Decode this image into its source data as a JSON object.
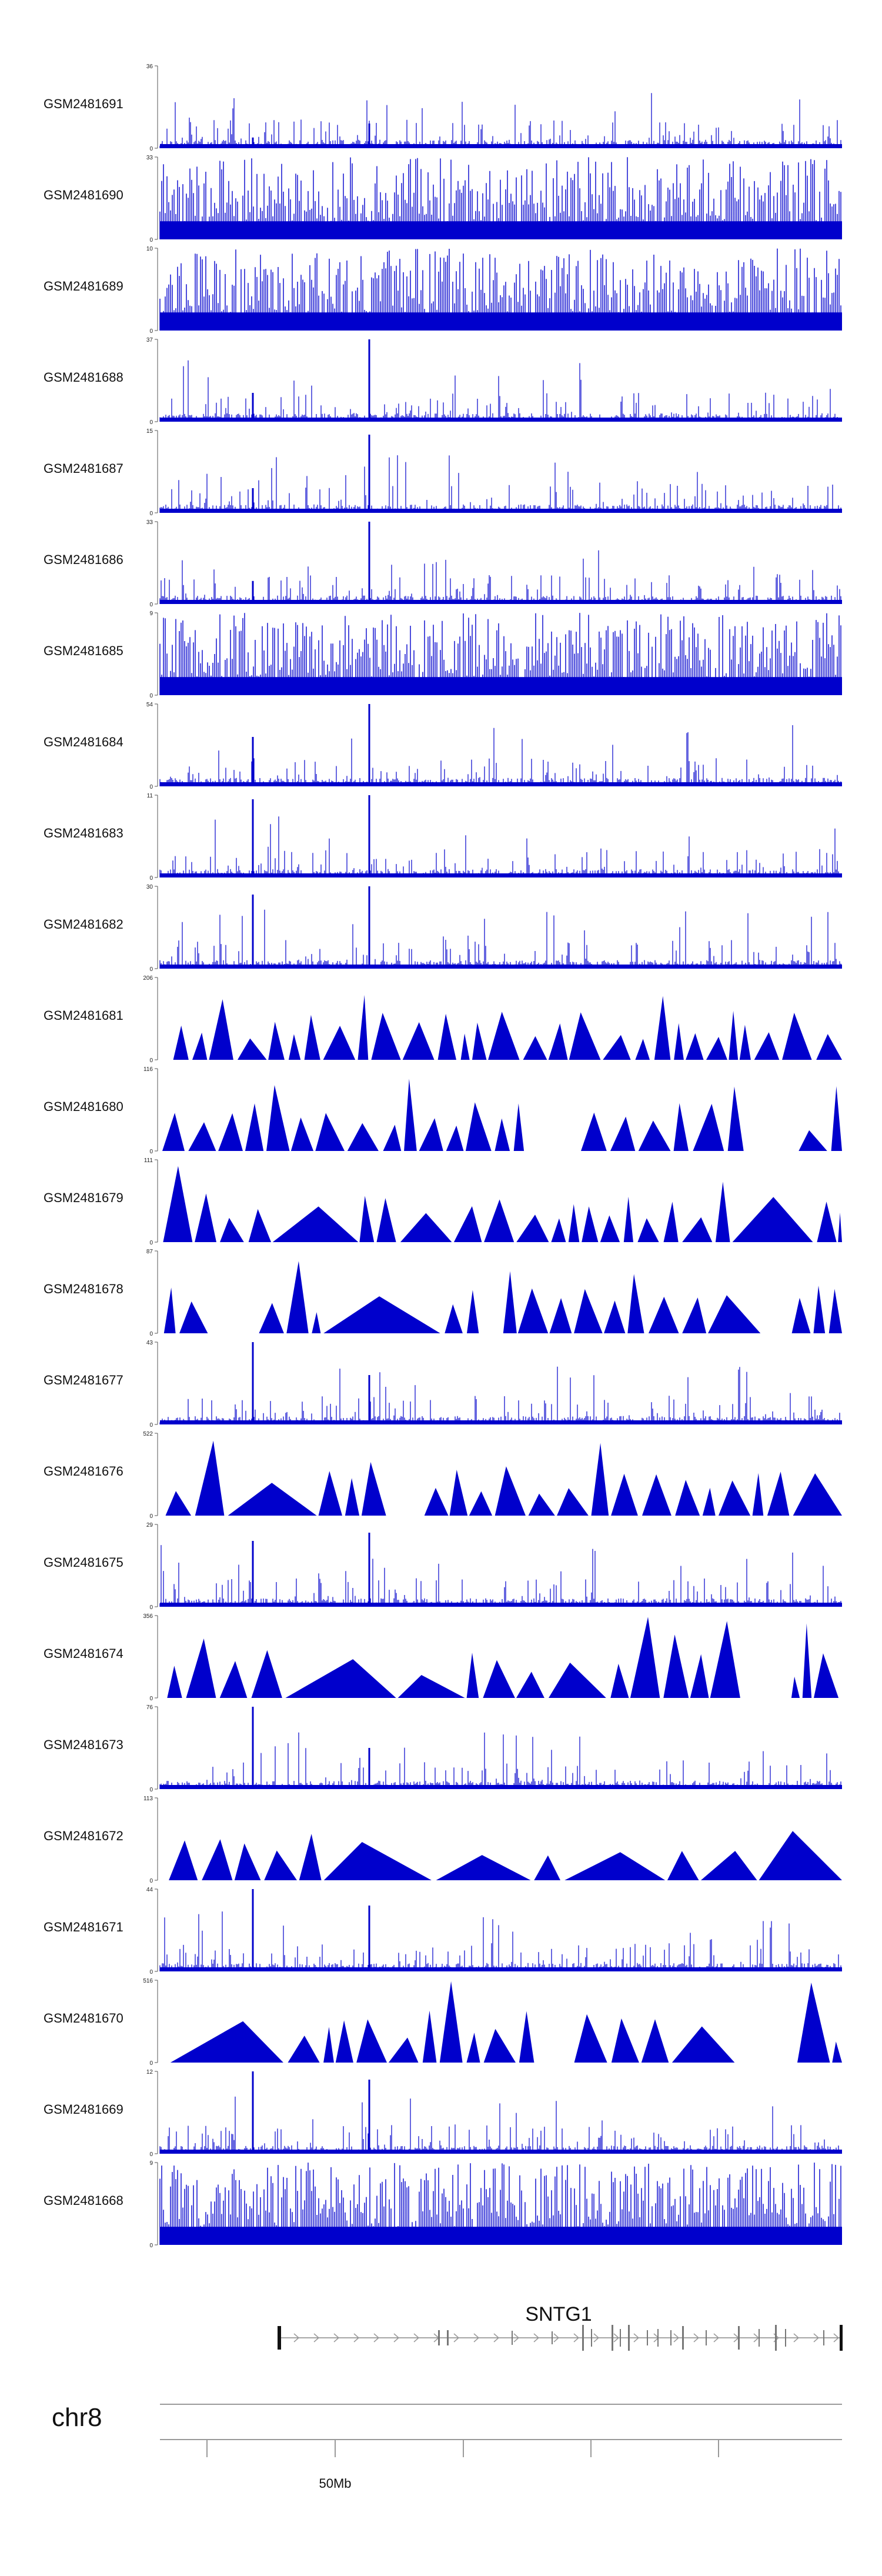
{
  "chart_data": {
    "type": "area",
    "track_color": "#0000cc",
    "chromosome": "chr8",
    "gene": {
      "name": "SNTG1"
    },
    "axis_tick_labels": [
      "50Mb"
    ],
    "tracks": [
      {
        "name": "GSM2481691",
        "ymax": 36,
        "ymin": 0,
        "style": "spiky",
        "peaks": [
          0.3,
          0.13
        ]
      },
      {
        "name": "GSM2481690",
        "ymax": 33,
        "ymin": 0,
        "style": "dense"
      },
      {
        "name": "GSM2481689",
        "ymax": 10,
        "ymin": 0,
        "style": "dense"
      },
      {
        "name": "GSM2481688",
        "ymax": 37,
        "ymin": 0,
        "style": "spiky",
        "peaks": [
          1.0,
          0.35
        ]
      },
      {
        "name": "GSM2481687",
        "ymax": 15,
        "ymin": 0,
        "style": "spiky",
        "peaks": [
          0.95,
          0.3
        ]
      },
      {
        "name": "GSM2481686",
        "ymax": 33,
        "ymin": 0,
        "style": "spiky",
        "peaks": [
          1.0,
          0.28
        ]
      },
      {
        "name": "GSM2481685",
        "ymax": 9,
        "ymin": 0,
        "style": "dense"
      },
      {
        "name": "GSM2481684",
        "ymax": 54,
        "ymin": 0,
        "style": "spiky",
        "peaks": [
          1.0,
          0.6
        ]
      },
      {
        "name": "GSM2481683",
        "ymax": 11,
        "ymin": 0,
        "style": "spiky",
        "peaks": [
          1.0,
          0.95
        ]
      },
      {
        "name": "GSM2481682",
        "ymax": 30,
        "ymin": 0,
        "style": "spiky",
        "peaks": [
          1.0,
          0.9
        ]
      },
      {
        "name": "GSM2481681",
        "ymax": 206,
        "ymin": 0,
        "style": "triangles"
      },
      {
        "name": "GSM2481680",
        "ymax": 116,
        "ymin": 0,
        "style": "triangles"
      },
      {
        "name": "GSM2481679",
        "ymax": 111,
        "ymin": 0,
        "style": "triangles"
      },
      {
        "name": "GSM2481678",
        "ymax": 87,
        "ymin": 0,
        "style": "triangles"
      },
      {
        "name": "GSM2481677",
        "ymax": 43,
        "ymin": 0,
        "style": "spiky",
        "peaks": [
          0.6,
          1.0
        ]
      },
      {
        "name": "GSM2481676",
        "ymax": 522,
        "ymin": 0,
        "style": "triangles"
      },
      {
        "name": "GSM2481675",
        "ymax": 29,
        "ymin": 0,
        "style": "spiky",
        "peaks": [
          0.9,
          0.8
        ]
      },
      {
        "name": "GSM2481674",
        "ymax": 356,
        "ymin": 0,
        "style": "triangles"
      },
      {
        "name": "GSM2481673",
        "ymax": 76,
        "ymin": 0,
        "style": "spiky",
        "peaks": [
          0.5,
          1.0
        ]
      },
      {
        "name": "GSM2481672",
        "ymax": 113,
        "ymin": 0,
        "style": "triangles"
      },
      {
        "name": "GSM2481671",
        "ymax": 44,
        "ymin": 0,
        "style": "spiky",
        "peaks": [
          0.8,
          1.0
        ]
      },
      {
        "name": "GSM2481670",
        "ymax": 516,
        "ymin": 0,
        "style": "triangles"
      },
      {
        "name": "GSM2481669",
        "ymax": 12,
        "ymin": 0,
        "style": "spiky",
        "peaks": [
          0.9,
          1.0
        ]
      },
      {
        "name": "GSM2481668",
        "ymax": 9,
        "ymin": 0,
        "style": "dense"
      }
    ]
  }
}
